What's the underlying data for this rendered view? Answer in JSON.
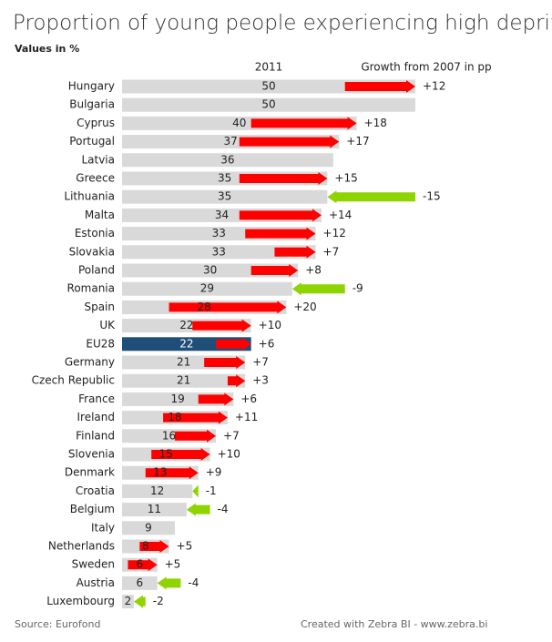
{
  "chart_data": {
    "type": "bar",
    "title": "Proportion of young people experiencing high deprivation",
    "subtitle": "Values in %",
    "source": "Source: Eurofond",
    "credit": "Created with Zebra BI - www.zebra.bi",
    "categories": [
      "Hungary",
      "Bulgaria",
      "Cyprus",
      "Portugal",
      "Latvia",
      "Greece",
      "Lithuania",
      "Malta",
      "Estonia",
      "Slovakia",
      "Poland",
      "Romania",
      "Spain",
      "UK",
      "EU28",
      "Germany",
      "Czech Republic",
      "France",
      "Ireland",
      "Finland",
      "Slovenia",
      "Denmark",
      "Croatia",
      "Belgium",
      "Italy",
      "Netherlands",
      "Sweden",
      "Austria",
      "Luxembourg"
    ],
    "highlight": "EU28",
    "highlight_color": "#1f4e79",
    "series": [
      {
        "name": "2011",
        "color": "#d9d9d9",
        "values": [
          50,
          50,
          40,
          37,
          36,
          35,
          35,
          34,
          33,
          33,
          30,
          29,
          28,
          22,
          22,
          21,
          21,
          19,
          18,
          16,
          15,
          13,
          12,
          11,
          9,
          8,
          6,
          6,
          2
        ]
      },
      {
        "name": "Growth from 2007 in pp",
        "positive_color": "#ff0000",
        "negative_color": "#8fd400",
        "values": [
          12,
          null,
          18,
          17,
          null,
          15,
          -15,
          14,
          12,
          7,
          8,
          -9,
          20,
          10,
          6,
          7,
          3,
          6,
          11,
          7,
          10,
          9,
          -1,
          -4,
          null,
          5,
          5,
          -4,
          -2
        ],
        "value_labels": [
          "+12",
          null,
          "+18",
          "+17",
          null,
          "+15",
          "-15",
          "+14",
          "+12",
          "+7",
          "+8",
          "-9",
          "+20",
          "+10",
          "+6",
          "+7",
          "+3",
          "+6",
          "+11",
          "+7",
          "+10",
          "+9",
          "-1",
          "-4",
          null,
          "+5",
          "+5",
          "-4",
          "-2"
        ]
      }
    ]
  }
}
